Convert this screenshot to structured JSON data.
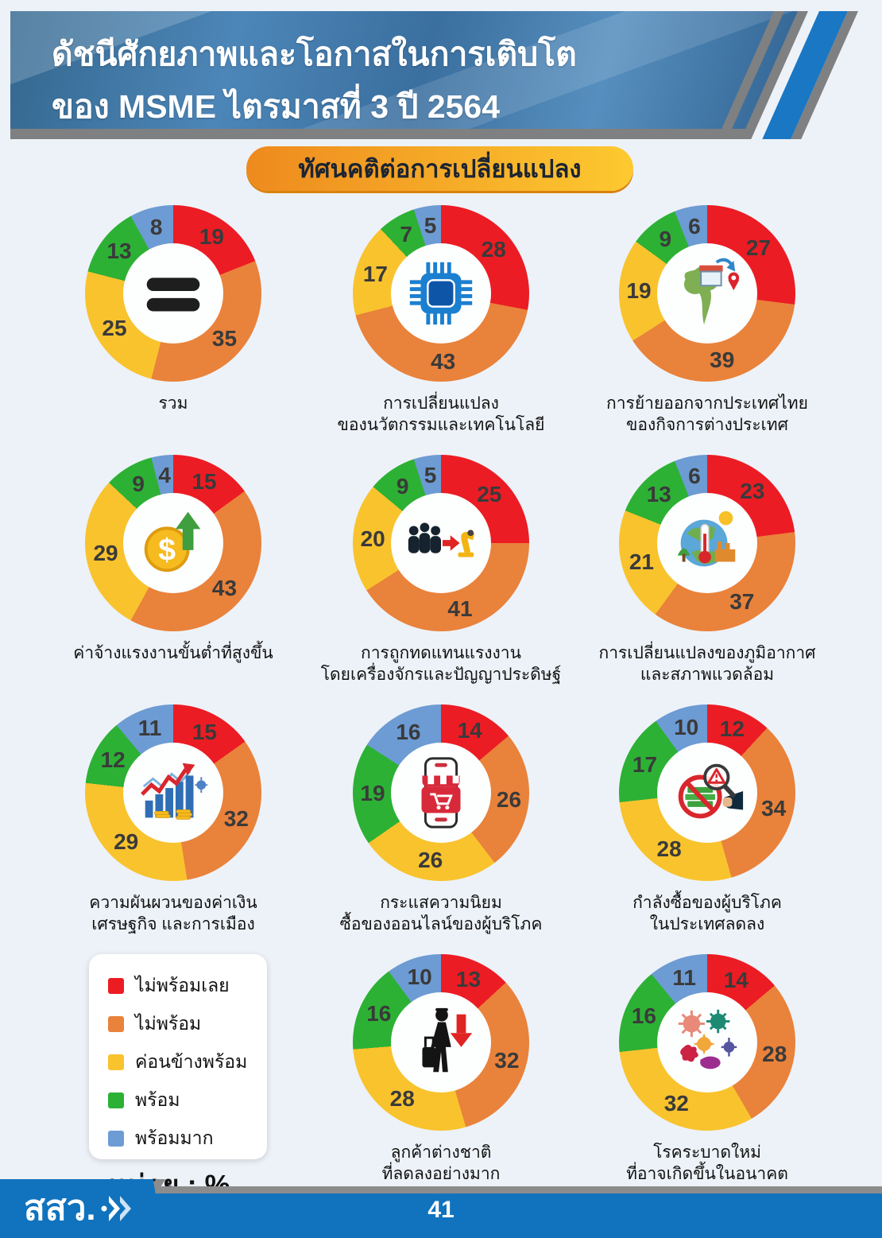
{
  "header": {
    "title_line1": "ดัชนีศักยภาพและโอกาสในการเติบโต",
    "title_line2": "ของ MSME ไตรมาสที่ 3 ปี 2564"
  },
  "badge": {
    "label": "ทัศนคติต่อการเปลี่ยนแปลง"
  },
  "legend": {
    "items": [
      {
        "label": "ไม่พร้อมเลย",
        "color": "#ec1c24"
      },
      {
        "label": "ไม่พร้อม",
        "color": "#e9823b"
      },
      {
        "label": "ค่อนข้างพร้อม",
        "color": "#f9c32e"
      },
      {
        "label": "พร้อม",
        "color": "#2cb134"
      },
      {
        "label": "พร้อมมาก",
        "color": "#6d9bd3"
      }
    ],
    "unit_label": "หน่วย : %"
  },
  "chart_data": {
    "type": "donut-grid",
    "unit": "%",
    "categories": [
      "ไม่พร้อมเลย",
      "ไม่พร้อม",
      "ค่อนข้างพร้อม",
      "พร้อม",
      "พร้อมมาก"
    ],
    "colors": [
      "#ec1c24",
      "#e9823b",
      "#f9c32e",
      "#2cb134",
      "#6d9bd3"
    ],
    "charts": [
      {
        "title_lines": [
          "รวม"
        ],
        "icon": "equals-icon",
        "values": [
          19,
          35,
          25,
          13,
          8
        ]
      },
      {
        "title_lines": [
          "การเปลี่ยนแปลง",
          "ของนวัตกรรมและเทคโนโลยี"
        ],
        "icon": "microchip-icon",
        "values": [
          28,
          43,
          17,
          7,
          5
        ]
      },
      {
        "title_lines": [
          "การย้ายออกจากประเทศไทย",
          "ของกิจการต่างประเทศ"
        ],
        "icon": "thailand-relocation-icon",
        "values": [
          27,
          39,
          19,
          9,
          6
        ]
      },
      {
        "title_lines": [
          "ค่าจ้างแรงงานขั้นต่ำที่สูงขึ้น"
        ],
        "icon": "wage-increase-icon",
        "values": [
          15,
          43,
          29,
          9,
          4
        ]
      },
      {
        "title_lines": [
          "การถูกทดแทนแรงงาน",
          "โดยเครื่องจักรและปัญญาประดิษฐ์"
        ],
        "icon": "automation-icon",
        "values": [
          25,
          41,
          20,
          9,
          5
        ]
      },
      {
        "title_lines": [
          "การเปลี่ยนแปลงของภูมิอากาศ",
          "และสภาพแวดล้อม"
        ],
        "icon": "climate-icon",
        "values": [
          23,
          37,
          21,
          13,
          6
        ]
      },
      {
        "title_lines": [
          "ความผันผวนของค่าเงิน",
          "เศรษฐกิจ และการเมือง"
        ],
        "icon": "economy-volatility-icon",
        "values": [
          15,
          32,
          29,
          12,
          11
        ]
      },
      {
        "title_lines": [
          "กระแสความนิยม",
          "ซื้อของออนไลน์ของผู้บริโภค"
        ],
        "icon": "online-shopping-icon",
        "values": [
          14,
          26,
          26,
          19,
          16
        ]
      },
      {
        "title_lines": [
          "กำลังซื้อของผู้บริโภค",
          "ในประเทศลดลง"
        ],
        "icon": "purchasing-power-icon",
        "values": [
          12,
          34,
          28,
          17,
          10
        ]
      },
      {
        "title_lines": [
          "ลูกค้าต่างชาติ",
          "ที่ลดลงอย่างมาก"
        ],
        "icon": "foreign-customer-icon",
        "values": [
          13,
          32,
          28,
          16,
          10
        ]
      },
      {
        "title_lines": [
          "โรคระบาดใหม่",
          "ที่อาจเกิดขึ้นในอนาคต"
        ],
        "icon": "epidemic-icon",
        "values": [
          14,
          28,
          32,
          16,
          11
        ]
      }
    ]
  },
  "footer": {
    "logo_text": "สสว.",
    "page_number": "41"
  }
}
